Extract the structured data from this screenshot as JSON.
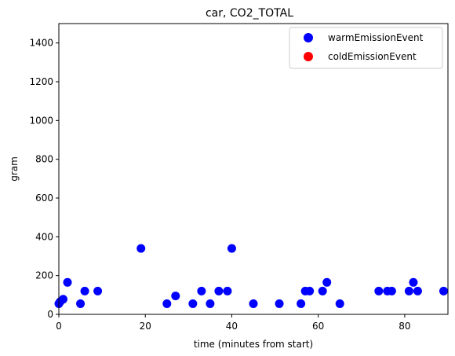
{
  "chart_data": {
    "type": "scatter",
    "title": "car, CO2_TOTAL",
    "xlabel": "time (minutes from start)",
    "ylabel": "gram",
    "xlim": [
      0,
      90
    ],
    "ylim": [
      0,
      1500
    ],
    "xticks": [
      0,
      20,
      40,
      60,
      80
    ],
    "yticks": [
      0,
      200,
      400,
      600,
      800,
      1000,
      1200,
      1400
    ],
    "grid": false,
    "legend_position": "top-right",
    "series": [
      {
        "name": "warmEmissionEvent",
        "color": "#0000ff",
        "points": [
          {
            "x": 0,
            "y": 55
          },
          {
            "x": 0.3,
            "y": 65
          },
          {
            "x": 1,
            "y": 78
          },
          {
            "x": 2,
            "y": 165
          },
          {
            "x": 5,
            "y": 55
          },
          {
            "x": 6,
            "y": 120
          },
          {
            "x": 9,
            "y": 120
          },
          {
            "x": 19,
            "y": 340
          },
          {
            "x": 25,
            "y": 55
          },
          {
            "x": 27,
            "y": 95
          },
          {
            "x": 31,
            "y": 55
          },
          {
            "x": 33,
            "y": 120
          },
          {
            "x": 35,
            "y": 55
          },
          {
            "x": 37,
            "y": 120
          },
          {
            "x": 39,
            "y": 120
          },
          {
            "x": 40,
            "y": 340
          },
          {
            "x": 45,
            "y": 55
          },
          {
            "x": 51,
            "y": 55
          },
          {
            "x": 56,
            "y": 55
          },
          {
            "x": 57,
            "y": 120
          },
          {
            "x": 58,
            "y": 120
          },
          {
            "x": 61,
            "y": 120
          },
          {
            "x": 62,
            "y": 165
          },
          {
            "x": 65,
            "y": 55
          },
          {
            "x": 74,
            "y": 120
          },
          {
            "x": 76,
            "y": 120
          },
          {
            "x": 77,
            "y": 120
          },
          {
            "x": 81,
            "y": 120
          },
          {
            "x": 82,
            "y": 165
          },
          {
            "x": 83,
            "y": 120
          },
          {
            "x": 89,
            "y": 120
          }
        ]
      },
      {
        "name": "coldEmissionEvent",
        "color": "#ff0000",
        "points": []
      }
    ]
  }
}
